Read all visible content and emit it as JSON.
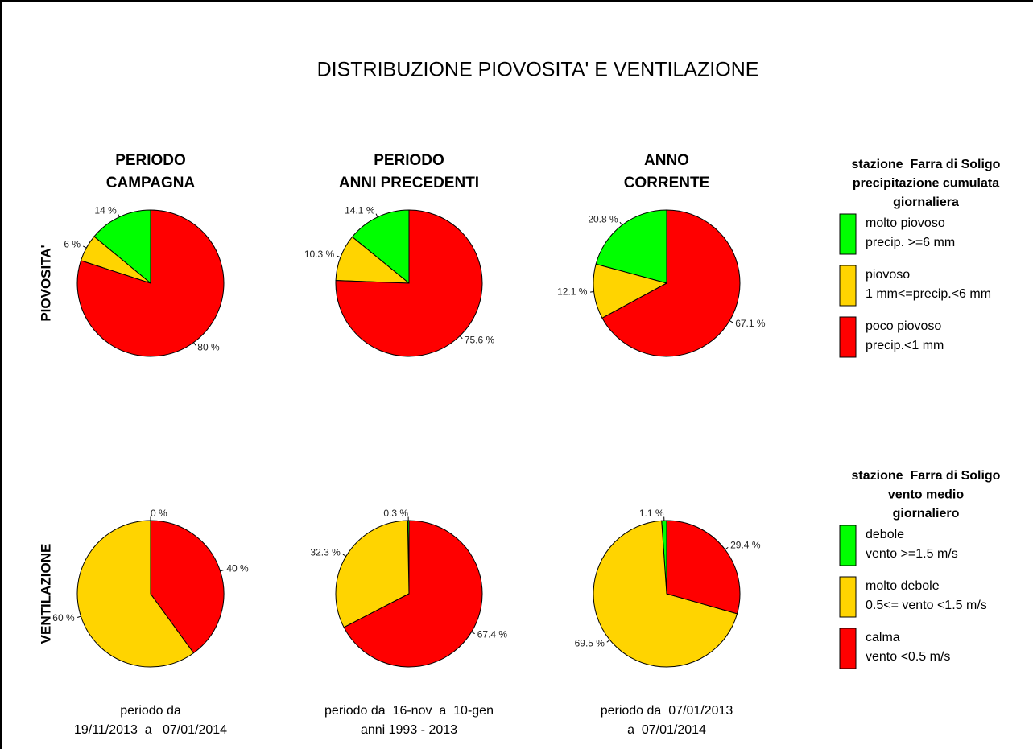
{
  "title": "DISTRIBUZIONE PIOVOSITA' E VENTILAZIONE",
  "column_headers": [
    [
      "PERIODO",
      "CAMPAGNA"
    ],
    [
      "PERIODO",
      "ANNI PRECEDENTI"
    ],
    [
      "ANNO",
      "CORRENTE"
    ]
  ],
  "row_labels": [
    "PIOVOSITA'",
    "VENTILAZIONE"
  ],
  "footers": [
    [
      "periodo da",
      "19/11/2013  a   07/01/2014"
    ],
    [
      "periodo da  16-nov  a  10-gen",
      "anni 1993 - 2013"
    ],
    [
      "periodo da  07/01/2013",
      "a  07/01/2014"
    ]
  ],
  "legends": [
    {
      "title": [
        "stazione  Farra di Soligo",
        "precipitazione cumulata",
        "giornaliera"
      ],
      "items": [
        {
          "label": [
            "molto piovoso",
            "precip. >=6 mm"
          ],
          "color": "#00ff00"
        },
        {
          "label": [
            "piovoso",
            "1 mm<=precip.<6 mm"
          ],
          "color": "#ffd400"
        },
        {
          "label": [
            "poco piovoso",
            "precip.<1 mm"
          ],
          "color": "#ff0000"
        }
      ]
    },
    {
      "title": [
        "stazione  Farra di Soligo",
        "vento medio",
        "giornaliero"
      ],
      "items": [
        {
          "label": [
            "debole",
            "vento >=1.5 m/s"
          ],
          "color": "#00ff00"
        },
        {
          "label": [
            "molto debole",
            "0.5<= vento <1.5 m/s"
          ],
          "color": "#ffd400"
        },
        {
          "label": [
            "calma",
            "vento <0.5 m/s"
          ],
          "color": "#ff0000"
        }
      ]
    }
  ],
  "chart_data": [
    {
      "type": "pie",
      "values": [
        14,
        6,
        80
      ],
      "value_labels": [
        "14 %",
        "6 %",
        "80 %"
      ],
      "colors": [
        "#00ff00",
        "#ffd400",
        "#ff0000"
      ]
    },
    {
      "type": "pie",
      "values": [
        14.1,
        10.3,
        75.6
      ],
      "value_labels": [
        "14.1 %",
        "10.3 %",
        "75.6 %"
      ],
      "colors": [
        "#00ff00",
        "#ffd400",
        "#ff0000"
      ]
    },
    {
      "type": "pie",
      "values": [
        20.8,
        12.1,
        67.1
      ],
      "value_labels": [
        "20.8 %",
        "12.1 %",
        "67.1 %"
      ],
      "colors": [
        "#00ff00",
        "#ffd400",
        "#ff0000"
      ]
    },
    {
      "type": "pie",
      "values": [
        0,
        60,
        40
      ],
      "value_labels": [
        "0 %",
        "60 %",
        "40 %"
      ],
      "colors": [
        "#00ff00",
        "#ffd400",
        "#ff0000"
      ]
    },
    {
      "type": "pie",
      "values": [
        0.3,
        32.3,
        67.4
      ],
      "value_labels": [
        "0.3 %",
        "32.3 %",
        "67.4 %"
      ],
      "colors": [
        "#00ff00",
        "#ffd400",
        "#ff0000"
      ]
    },
    {
      "type": "pie",
      "values": [
        1.1,
        69.5,
        29.4
      ],
      "value_labels": [
        "1.1 %",
        "69.5 %",
        "29.4 %"
      ],
      "colors": [
        "#00ff00",
        "#ffd400",
        "#ff0000"
      ]
    }
  ]
}
